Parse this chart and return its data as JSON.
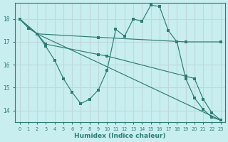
{
  "xlabel": "Humidex (Indice chaleur)",
  "background_color": "#c8eef0",
  "grid_color": "#c0d8da",
  "line_color": "#2e7d72",
  "xlim": [
    -0.5,
    23.5
  ],
  "ylim": [
    13.5,
    18.7
  ],
  "yticks": [
    14,
    15,
    16,
    17,
    18
  ],
  "xticks": [
    0,
    1,
    2,
    3,
    4,
    5,
    6,
    7,
    8,
    9,
    10,
    11,
    12,
    13,
    14,
    15,
    16,
    17,
    18,
    19,
    20,
    21,
    22,
    23
  ],
  "line1": {
    "x": [
      0,
      1,
      2,
      3,
      4,
      5,
      6,
      7,
      8,
      9,
      10,
      11,
      12,
      13,
      14,
      15,
      16,
      17,
      18,
      19,
      20,
      21,
      22,
      23
    ],
    "y": [
      18.0,
      17.6,
      17.35,
      16.8,
      16.2,
      15.4,
      14.8,
      14.3,
      14.5,
      14.9,
      15.75,
      17.55,
      17.25,
      18.0,
      17.9,
      18.6,
      18.55,
      17.5,
      17.0,
      15.4,
      14.55,
      14.05,
      13.7,
      13.58
    ]
  },
  "line2": {
    "x": [
      0,
      2,
      9,
      19,
      23
    ],
    "y": [
      18.0,
      17.35,
      17.2,
      17.0,
      17.0
    ]
  },
  "line3": {
    "x": [
      0,
      2,
      23
    ],
    "y": [
      18.0,
      17.35,
      13.58
    ]
  },
  "line4": {
    "x": [
      0,
      2,
      3,
      9,
      10,
      19,
      20,
      21,
      22,
      23
    ],
    "y": [
      18.0,
      17.35,
      16.9,
      16.45,
      16.38,
      15.5,
      15.4,
      14.5,
      13.9,
      13.58
    ]
  }
}
